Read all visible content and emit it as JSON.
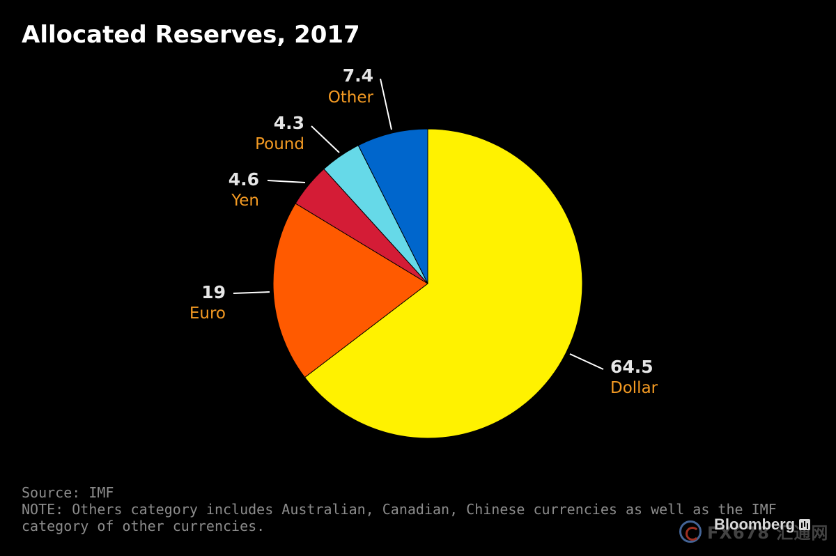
{
  "title": "Allocated Reserves, 2017",
  "footer": {
    "source": "Source: IMF",
    "note_line1": "NOTE: Others category includes Australian, Canadian, Chinese currencies as well as the IMF",
    "note_line2": "category of other currencies."
  },
  "brand": "Bloomberg",
  "watermark": "FX678 汇通网",
  "chart_data": {
    "type": "pie",
    "title": "Allocated Reserves, 2017",
    "start_angle": "12 o'clock",
    "direction": "clockwise",
    "slices": [
      {
        "name": "Dollar",
        "value": 64.5,
        "label": "64.5",
        "color": "#fff200"
      },
      {
        "name": "Euro",
        "value": 19,
        "label": "19",
        "color": "#ff5a00"
      },
      {
        "name": "Yen",
        "value": 4.6,
        "label": "4.6",
        "color": "#d41c36"
      },
      {
        "name": "Pound",
        "value": 4.3,
        "label": "4.3",
        "color": "#66d9e8"
      },
      {
        "name": "Other",
        "value": 7.4,
        "label": "7.4",
        "color": "#0066cc"
      }
    ],
    "value_label_color": "#e6e6e6",
    "category_label_color": "#f59b23",
    "background": "#000000"
  }
}
